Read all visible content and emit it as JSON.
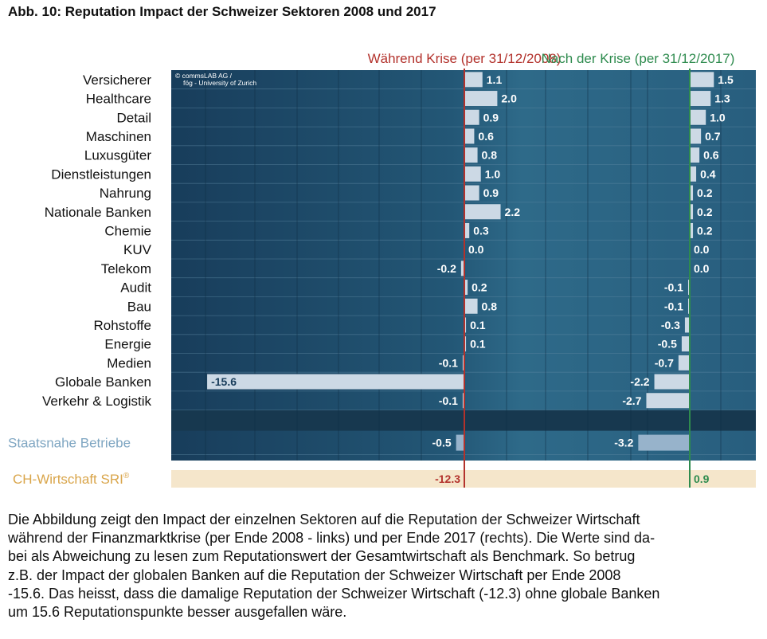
{
  "figure_title": "Abb. 10: Reputation Impact der Schweizer Sektoren 2008 und 2017",
  "copyright": [
    "© commsLAB AG /",
    "fög - University of Zurich"
  ],
  "caption_lines": [
    "Die Abbildung zeigt den Impact der einzelnen Sektoren auf die Reputation der Schweizer Wirtschaft",
    "während der Finanzmarktkrise (per Ende 2008 - links) und per Ende 2017 (rechts). Die Werte sind da-",
    "bei als Abweichung zu lesen zum Reputationswert der Gesamtwirtschaft als Benchmark. So betrug",
    "z.B. der Impact der globalen Banken auf die Reputation der Schweizer Wirtschaft per Ende 2008",
    "-15.6. Das heisst, dass die damalige Reputation der Schweizer Wirtschaft (-12.3) ohne globale Banken",
    "um 15.6 Reputationspunkte besser ausgefallen wäre."
  ],
  "chart_data": {
    "type": "bar",
    "orientation": "horizontal",
    "title": "Reputation Impact der Schweizer Sektoren 2008 und 2017",
    "categories": [
      "Versicherer",
      "Healthcare",
      "Detail",
      "Maschinen",
      "Luxusgüter",
      "Dienstleistungen",
      "Nahrung",
      "Nationale Banken",
      "Chemie",
      "KUV",
      "Telekom",
      "Audit",
      "Bau",
      "Rohstoffe",
      "Energie",
      "Medien",
      "Globale Banken",
      "Verkehr & Logistik"
    ],
    "series": [
      {
        "name": "Während Krise (per 31/12/2008)",
        "color": "#b3322c",
        "values": [
          1.1,
          2.0,
          0.9,
          0.6,
          0.8,
          1.0,
          0.9,
          2.2,
          0.3,
          0.0,
          -0.2,
          0.2,
          0.8,
          0.1,
          0.1,
          -0.1,
          -15.6,
          -0.1
        ],
        "labels": [
          "1.1",
          "2.0",
          "0.9",
          "0.6",
          "0.8",
          "1.0",
          "0.9",
          "2.2",
          "0.3",
          "0.0",
          "-0.2",
          "0.2",
          "0.8",
          "0.1",
          "0.1",
          "-0.1",
          "-15.6",
          "-0.1"
        ]
      },
      {
        "name": "Nach der Krise  (per 31/12/2017)",
        "color": "#2e8b4e",
        "values": [
          1.5,
          1.3,
          1.0,
          0.7,
          0.6,
          0.4,
          0.2,
          0.2,
          0.2,
          0.0,
          0.0,
          -0.1,
          -0.1,
          -0.3,
          -0.5,
          -0.7,
          -2.2,
          -2.7
        ],
        "labels": [
          "1.5",
          "1.3",
          "1.0",
          "0.7",
          "0.6",
          "0.4",
          "0.2",
          "0.2",
          "0.2",
          "0.0",
          "0.0",
          "-0.1",
          "-0.1",
          "-0.3",
          "-0.5",
          "-0.7",
          "-2.2",
          "-2.7"
        ]
      }
    ],
    "summary_rows": [
      {
        "name": "Staatsnahe Betriebe",
        "color": "#7fa6c2",
        "values": [
          -0.5,
          -3.2
        ],
        "labels": [
          "-0.5",
          "-3.2"
        ]
      },
      {
        "name": "CH-Wirtschaft SRI",
        "superscript": "®",
        "color": "#d9a54a",
        "values": [
          -12.3,
          0.9
        ],
        "labels": [
          "-12.3",
          "0.9"
        ]
      }
    ],
    "colors": {
      "panel_dark": "#183d5b",
      "panel_mid": "#2e6988",
      "bar_fill": "#ccd9e5",
      "staatsnahe_bar": "#97b3cb",
      "sri_band": "#f5e6cb"
    }
  }
}
